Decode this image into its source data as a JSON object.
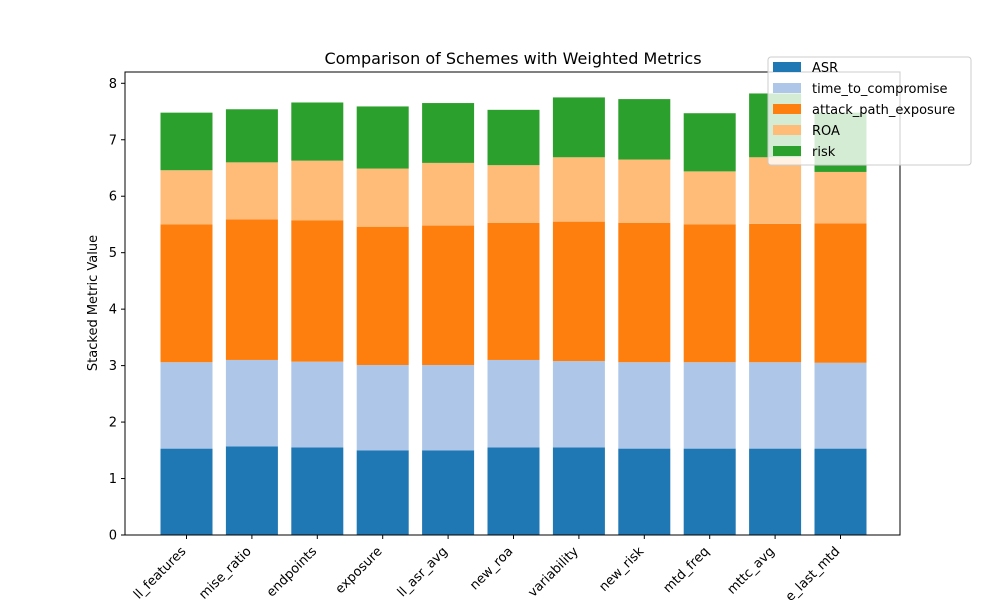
{
  "chart_data": {
    "type": "bar",
    "stacked": true,
    "title": "Comparison of Schemes with Weighted Metrics",
    "xlabel": "",
    "ylabel": "Stacked Metric Value",
    "ylim": [
      0,
      8.2
    ],
    "yticks": [
      0,
      1,
      2,
      3,
      4,
      5,
      6,
      7,
      8
    ],
    "grid": false,
    "legend_position": "top-right",
    "categories": [
      "ll_features",
      "mise_ratio",
      "endpoints",
      "exposure",
      "ll_asr_avg",
      "new_roa",
      "variability",
      "new_risk",
      "mtd_freq",
      "mttc_avg",
      "e_last_mtd"
    ],
    "series": [
      {
        "name": "ASR",
        "color": "#1f77b4",
        "values": [
          1.53,
          1.57,
          1.55,
          1.5,
          1.5,
          1.55,
          1.55,
          1.53,
          1.53,
          1.53,
          1.53
        ]
      },
      {
        "name": "time_to_compromise",
        "color": "#aec7e8",
        "values": [
          1.53,
          1.53,
          1.52,
          1.51,
          1.51,
          1.55,
          1.53,
          1.53,
          1.53,
          1.53,
          1.52
        ]
      },
      {
        "name": "attack_path_exposure",
        "color": "#ff7f0e",
        "values": [
          2.44,
          2.49,
          2.5,
          2.45,
          2.47,
          2.43,
          2.47,
          2.47,
          2.44,
          2.45,
          2.47
        ]
      },
      {
        "name": "ROA",
        "color": "#ffbb78",
        "values": [
          0.96,
          1.01,
          1.06,
          1.03,
          1.11,
          1.02,
          1.14,
          1.12,
          0.94,
          1.18,
          0.91
        ]
      },
      {
        "name": "risk",
        "color": "#2ca02c",
        "values": [
          1.02,
          0.94,
          1.03,
          1.1,
          1.06,
          0.98,
          1.06,
          1.07,
          1.03,
          1.13,
          1.05
        ]
      }
    ]
  }
}
